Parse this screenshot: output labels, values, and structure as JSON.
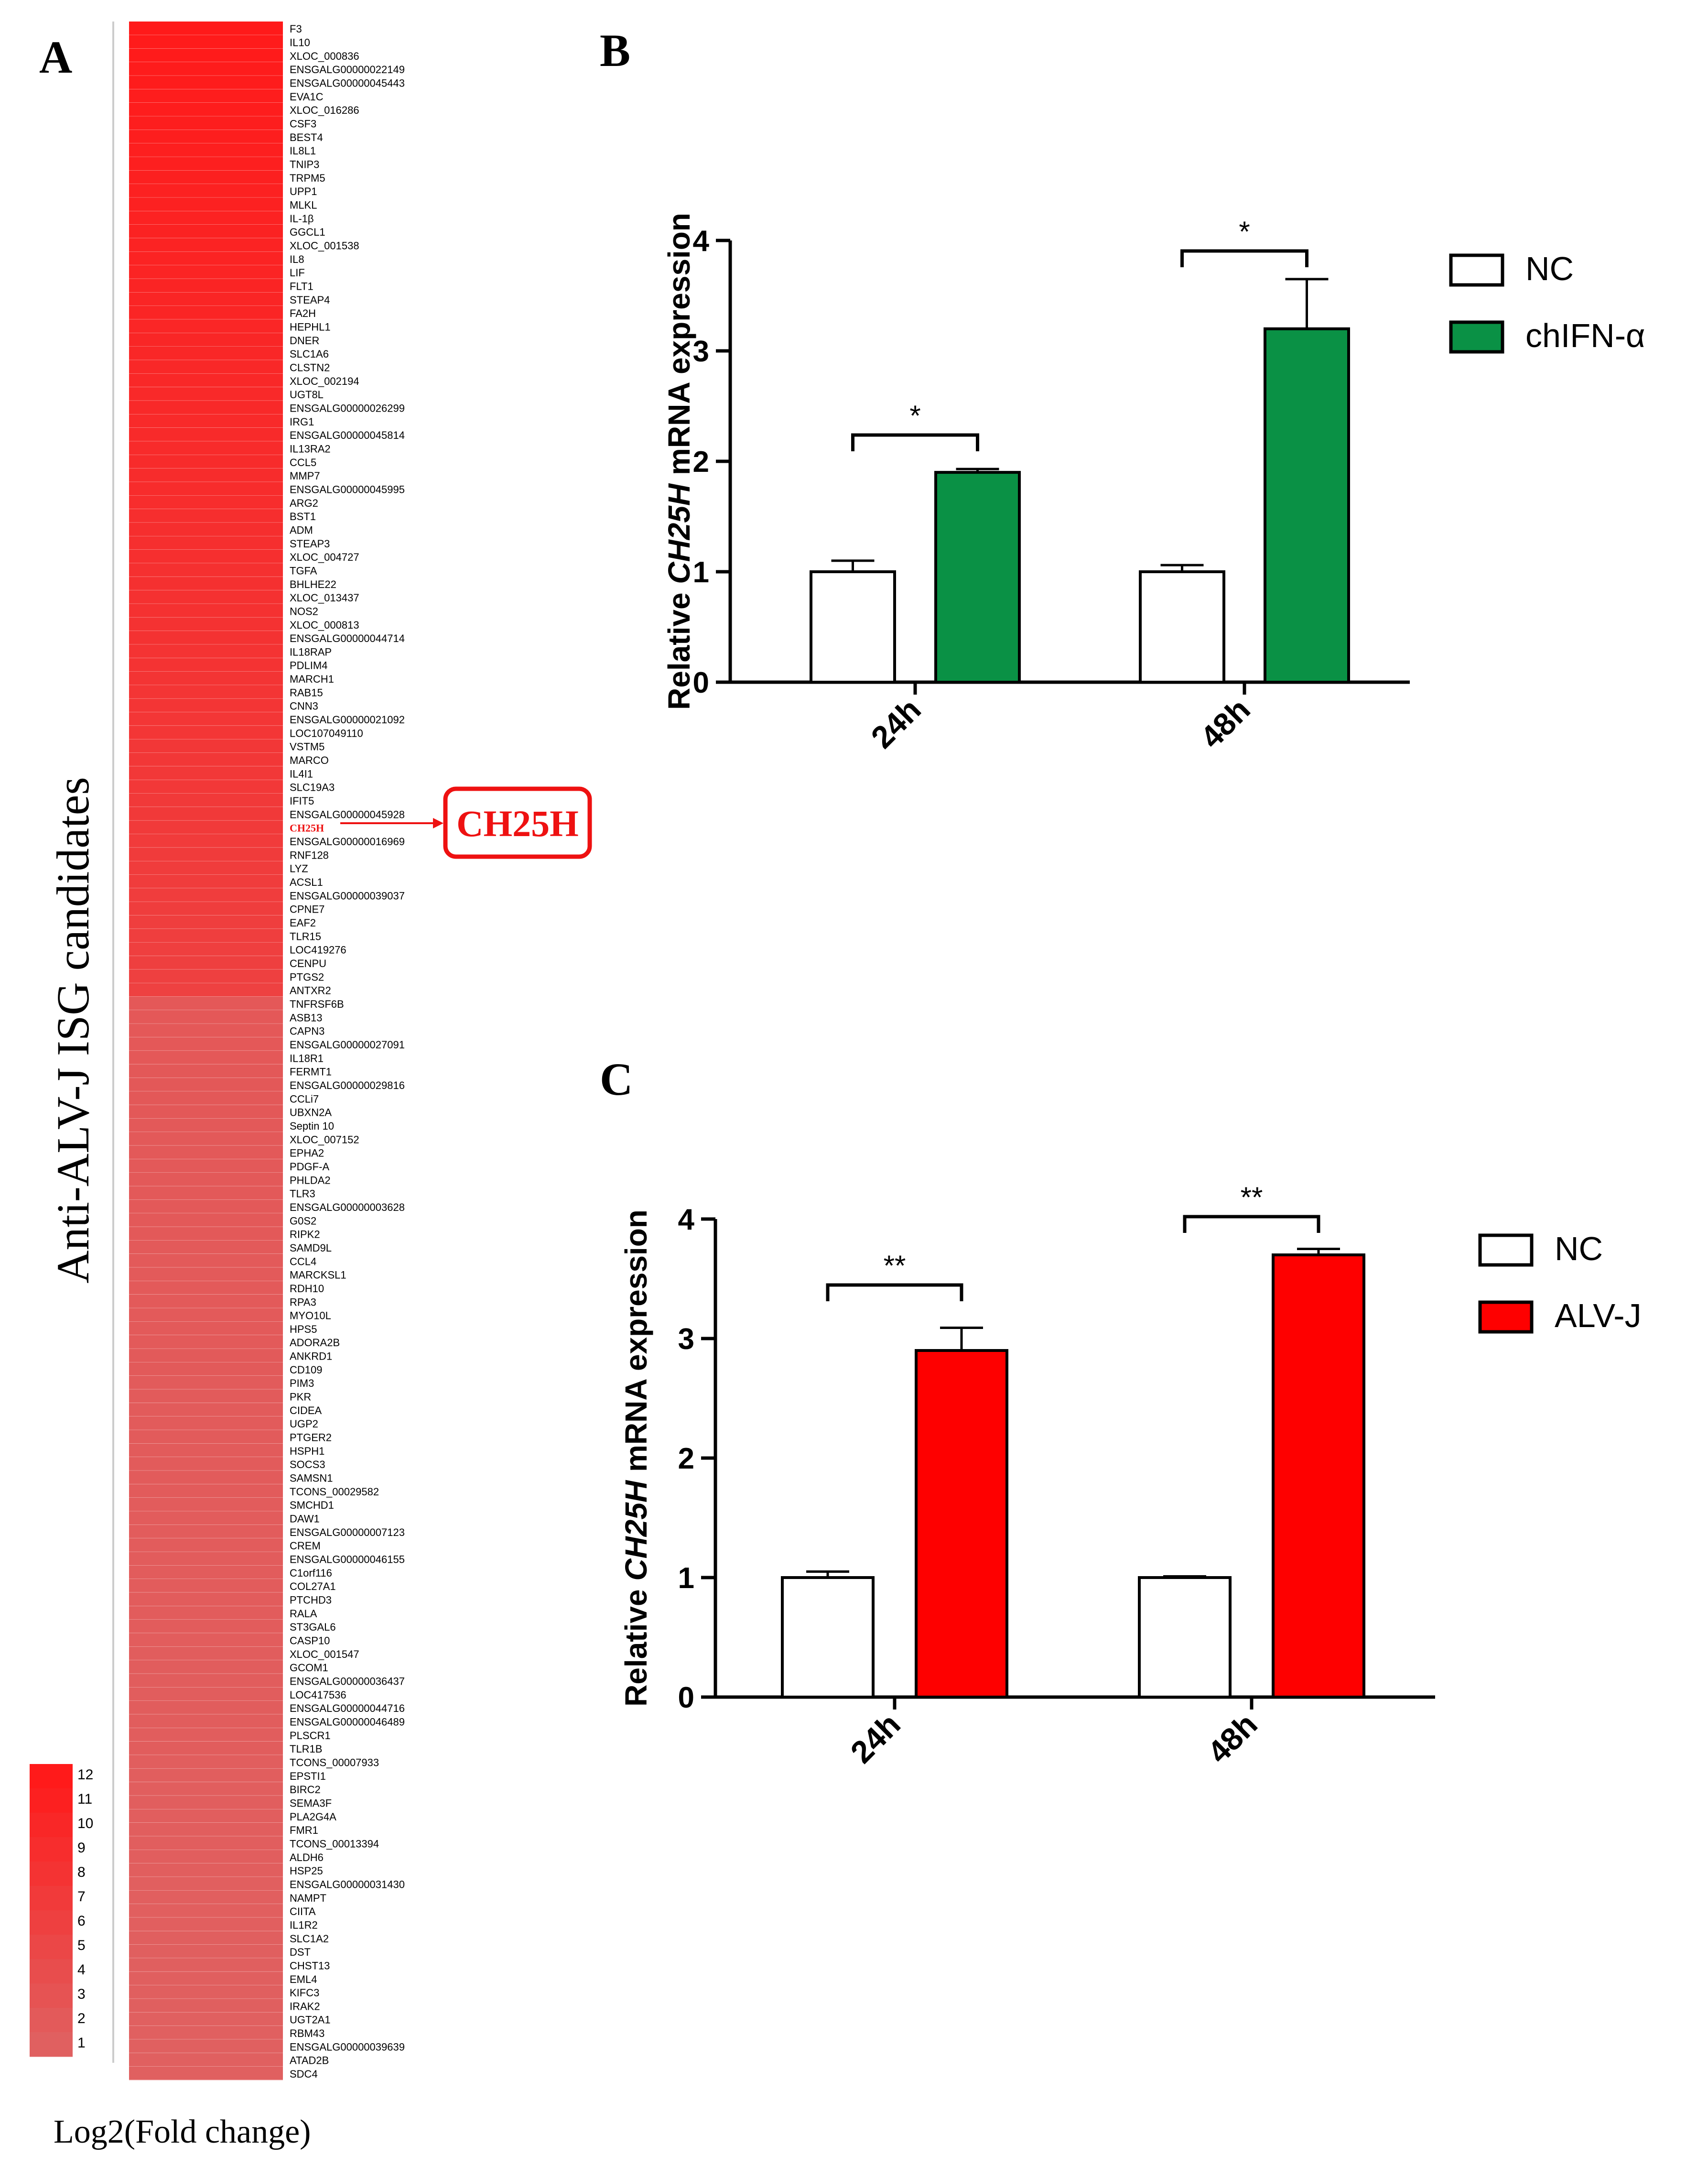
{
  "panel_labels": {
    "a": "A",
    "b": "B",
    "c": "C"
  },
  "chart_data": [
    {
      "type": "heatmap",
      "panel": "A",
      "ylabel": "Anti-ALV-J ISG candidates",
      "legend_title": "Log2(Fold change)",
      "legend_ticks": [
        "12",
        "11",
        "10",
        "9",
        "8",
        "7",
        "6",
        "5",
        "4",
        "3",
        "2",
        "1"
      ],
      "highlight": {
        "gene": "CH25H",
        "callout": "CH25H"
      },
      "colors": {
        "low": "#e06060",
        "high": "#ff1a1a",
        "highlight": "#ee1111"
      },
      "genes": [
        "F3",
        "IL10",
        "XLOC_000836",
        "ENSGALG00000022149",
        "ENSGALG00000045443",
        "EVA1C",
        "XLOC_016286",
        "CSF3",
        "BEST4",
        "IL8L1",
        "TNIP3",
        "TRPM5",
        "UPP1",
        "MLKL",
        "IL-1β",
        "GGCL1",
        "XLOC_001538",
        "IL8",
        "LIF",
        "FLT1",
        "STEAP4",
        "FA2H",
        "HEPHL1",
        "DNER",
        "SLC1A6",
        "CLSTN2",
        "XLOC_002194",
        "UGT8L",
        "ENSGALG00000026299",
        "IRG1",
        "ENSGALG00000045814",
        "IL13RA2",
        "CCL5",
        "MMP7",
        "ENSGALG00000045995",
        "ARG2",
        "BST1",
        "ADM",
        "STEAP3",
        "XLOC_004727",
        "TGFA",
        "BHLHE22",
        "XLOC_013437",
        "NOS2",
        "XLOC_000813",
        "ENSGALG00000044714",
        "IL18RAP",
        "PDLIM4",
        "MARCH1",
        "RAB15",
        "CNN3",
        "ENSGALG00000021092",
        "LOC107049110",
        "VSTM5",
        "MARCO",
        "IL4I1",
        "SLC19A3",
        "IFIT5",
        "ENSGALG00000045928",
        "CH25H",
        "ENSGALG00000016969",
        "RNF128",
        "LYZ",
        "ACSL1",
        "ENSGALG00000039037",
        "CPNE7",
        "EAF2",
        "TLR15",
        "LOC419276",
        "CENPU",
        "PTGS2",
        "ANTXR2",
        "TNFRSF6B",
        "ASB13",
        "CAPN3",
        "ENSGALG00000027091",
        "IL18R1",
        "FERMT1",
        "ENSGALG00000029816",
        "CCLi7",
        "UBXN2A",
        "Septin 10",
        "XLOC_007152",
        "EPHA2",
        "PDGF-A",
        "PHLDA2",
        "TLR3",
        "ENSGALG00000003628",
        "G0S2",
        "RIPK2",
        "SAMD9L",
        "CCL4",
        "MARCKSL1",
        "RDH10",
        "RPA3",
        "MYO10L",
        "HPS5",
        "ADORA2B",
        "ANKRD1",
        "CD109",
        "PIM3",
        "PKR",
        "CIDEA",
        "UGP2",
        "PTGER2",
        "HSPH1",
        "SOCS3",
        "SAMSN1",
        "TCONS_00029582",
        "SMCHD1",
        "DAW1",
        "ENSGALG00000007123",
        "CREM",
        "ENSGALG00000046155",
        "C1orf116",
        "COL27A1",
        "PTCHD3",
        "RALA",
        "ST3GAL6",
        "CASP10",
        "XLOC_001547",
        "GCOM1",
        "ENSGALG00000036437",
        "LOC417536",
        "ENSGALG00000044716",
        "ENSGALG00000046489",
        "PLSCR1",
        "TLR1B",
        "TCONS_00007933",
        "EPSTI1",
        "BIRC2",
        "SEMA3F",
        "PLA2G4A",
        "FMR1",
        "TCONS_00013394",
        "ALDH6",
        "HSP25",
        "ENSGALG00000031430",
        "NAMPT",
        "CIITA",
        "IL1R2",
        "SLC1A2",
        "DST",
        "CHST13",
        "EML4",
        "KIFC3",
        "IRAK2",
        "UGT2A1",
        "RBM43",
        "ENSGALG00000039639",
        "ATAD2B",
        "SDC4"
      ]
    },
    {
      "type": "bar",
      "panel": "B",
      "categories": [
        "24h",
        "48h"
      ],
      "series": [
        {
          "name": "NC",
          "values": [
            1.0,
            1.0
          ],
          "errors": [
            0.1,
            0.06
          ],
          "color": "#ffffff"
        },
        {
          "name": "chIFN-α",
          "values": [
            1.9,
            3.2
          ],
          "errors": [
            0.03,
            0.45
          ],
          "color": "#0a9145"
        }
      ],
      "significance": [
        "*",
        "*"
      ],
      "ylabel_prefix": "Relative ",
      "ylabel_gene": "CH25H",
      "ylabel_suffix": " mRNA expression",
      "ylim": [
        0,
        4
      ],
      "yticks": [
        "0",
        "1",
        "2",
        "3",
        "4"
      ]
    },
    {
      "type": "bar",
      "panel": "C",
      "categories": [
        "24h",
        "48h"
      ],
      "series": [
        {
          "name": "NC",
          "values": [
            1.0,
            1.0
          ],
          "errors": [
            0.05,
            0.01
          ],
          "color": "#ffffff"
        },
        {
          "name": "ALV-J",
          "values": [
            2.9,
            3.7
          ],
          "errors": [
            0.19,
            0.05
          ],
          "color": "#fe0000"
        }
      ],
      "significance": [
        "**",
        "**"
      ],
      "ylabel_prefix": "Relative ",
      "ylabel_gene": "CH25H",
      "ylabel_suffix": " mRNA expression",
      "ylim": [
        0,
        4
      ],
      "yticks": [
        "0",
        "1",
        "2",
        "3",
        "4"
      ]
    }
  ]
}
